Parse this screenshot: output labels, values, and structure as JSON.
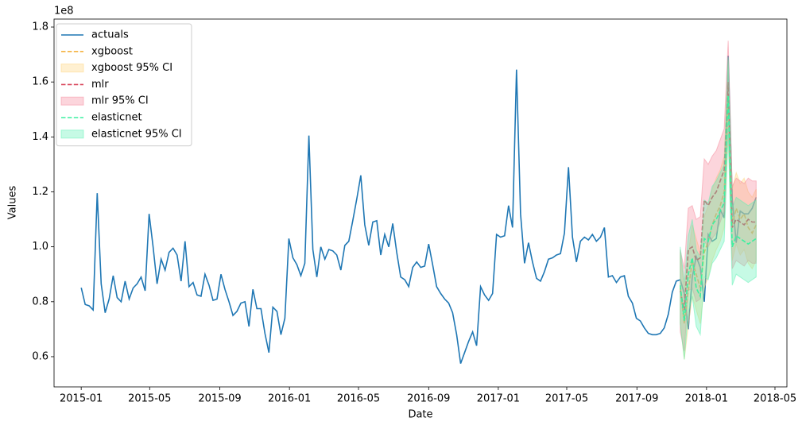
{
  "chart_data": {
    "type": "line",
    "xlabel": "Date",
    "ylabel": "Values",
    "y_offset_text": "1e8",
    "xlim": [
      -6.8,
      176.7
    ],
    "ylim": [
      0.49,
      1.829
    ],
    "xticks": [
      {
        "value": 0,
        "label": "2015-01"
      },
      {
        "value": 17.14,
        "label": "2015-05"
      },
      {
        "value": 34.71,
        "label": "2015-09"
      },
      {
        "value": 52.14,
        "label": "2016-01"
      },
      {
        "value": 69.43,
        "label": "2016-05"
      },
      {
        "value": 87,
        "label": "2016-09"
      },
      {
        "value": 104.43,
        "label": "2017-01"
      },
      {
        "value": 121.57,
        "label": "2017-05"
      },
      {
        "value": 139.14,
        "label": "2017-09"
      },
      {
        "value": 156.57,
        "label": "2018-01"
      },
      {
        "value": 173.71,
        "label": "2018-05"
      }
    ],
    "yticks": [
      0.6,
      0.8,
      {
        "value": 1,
        "label": "1.0"
      },
      1.2,
      1.4,
      1.6,
      1.8
    ],
    "legend": "upper left",
    "series": [
      {
        "name": "actuals",
        "color": "#1f77b4",
        "style": "solid",
        "x": [
          0,
          1,
          2,
          3,
          4,
          5,
          6,
          7,
          8,
          9,
          10,
          11,
          12,
          13,
          14,
          15,
          16,
          17,
          18,
          19,
          20,
          21,
          22,
          23,
          24,
          25,
          26,
          27,
          28,
          29,
          30,
          31,
          32,
          33,
          34,
          35,
          36,
          37,
          38,
          39,
          40,
          41,
          42,
          43,
          44,
          45,
          46,
          47,
          48,
          49,
          50,
          51,
          52,
          53,
          54,
          55,
          56,
          57,
          58,
          59,
          60,
          61,
          62,
          63,
          64,
          65,
          66,
          67,
          68,
          69,
          70,
          71,
          72,
          73,
          74,
          75,
          76,
          77,
          78,
          79,
          80,
          81,
          82,
          83,
          84,
          85,
          86,
          87,
          88,
          89,
          90,
          91,
          92,
          93,
          94,
          95,
          96,
          97,
          98,
          99,
          100,
          101,
          102,
          103,
          104,
          105,
          106,
          107,
          108,
          109,
          110,
          111,
          112,
          113,
          114,
          115,
          116,
          117,
          118,
          119,
          120,
          121,
          122,
          123,
          124,
          125,
          126,
          127,
          128,
          129,
          130,
          131,
          132,
          133,
          134,
          135,
          136,
          137,
          138,
          139,
          140,
          141,
          142,
          143,
          144,
          145,
          146,
          147,
          148,
          149,
          150,
          151,
          152,
          153,
          154,
          155,
          156,
          157,
          158,
          159,
          160,
          161,
          162,
          163,
          164,
          165,
          166,
          167,
          168,
          169
        ],
        "values": [
          0.851,
          0.79,
          0.785,
          0.77,
          1.195,
          0.865,
          0.76,
          0.81,
          0.895,
          0.815,
          0.8,
          0.875,
          0.81,
          0.85,
          0.865,
          0.89,
          0.84,
          1.12,
          1.0,
          0.865,
          0.955,
          0.915,
          0.98,
          0.995,
          0.97,
          0.875,
          1.02,
          0.855,
          0.87,
          0.825,
          0.82,
          0.9,
          0.86,
          0.805,
          0.81,
          0.9,
          0.845,
          0.8,
          0.75,
          0.765,
          0.795,
          0.8,
          0.71,
          0.845,
          0.775,
          0.775,
          0.685,
          0.615,
          0.78,
          0.765,
          0.68,
          0.74,
          1.03,
          0.96,
          0.935,
          0.895,
          0.94,
          1.405,
          0.99,
          0.89,
          1.0,
          0.955,
          0.99,
          0.985,
          0.97,
          0.915,
          1.005,
          1.02,
          1.095,
          1.175,
          1.26,
          1.08,
          1.005,
          1.09,
          1.095,
          0.97,
          1.045,
          1.0,
          1.085,
          0.98,
          0.89,
          0.88,
          0.855,
          0.925,
          0.945,
          0.925,
          0.93,
          1.01,
          0.935,
          0.855,
          0.83,
          0.81,
          0.795,
          0.76,
          0.68,
          0.575,
          0.615,
          0.655,
          0.69,
          0.64,
          0.855,
          0.825,
          0.805,
          0.83,
          1.045,
          1.035,
          1.04,
          1.15,
          1.07,
          1.645,
          1.12,
          0.94,
          1.015,
          0.945,
          0.885,
          0.875,
          0.91,
          0.955,
          0.96,
          0.97,
          0.975,
          1.05,
          1.29,
          1.035,
          0.945,
          1.02,
          1.035,
          1.025,
          1.045,
          1.02,
          1.035,
          1.07,
          0.89,
          0.895,
          0.87,
          0.89,
          0.895,
          0.82,
          0.795,
          0.74,
          0.73,
          0.705,
          0.685,
          0.68,
          0.68,
          0.685,
          0.705,
          0.755,
          0.835,
          0.875,
          0.88,
          0.83,
          0.7,
          0.89,
          0.965,
          0.925,
          0.8,
          1.045,
          1.02,
          1.03,
          1.135,
          1.105,
          1.695,
          1.175,
          1.015,
          1.13,
          1.12,
          1.12,
          1.14,
          1.18
        ]
      },
      {
        "name": "xgboost",
        "color": "#f5b342",
        "style": "dashed",
        "x": [
          150,
          151,
          152,
          153,
          154,
          155,
          156,
          157,
          158,
          159,
          160,
          161,
          162,
          163,
          164,
          165,
          166,
          167,
          168,
          169
        ],
        "values": [
          0.85,
          0.72,
          0.84,
          0.95,
          0.9,
          0.85,
          0.98,
          1.02,
          1.08,
          1.12,
          1.15,
          1.2,
          1.55,
          1.08,
          1.14,
          1.1,
          1.12,
          1.07,
          1.05,
          1.08
        ],
        "ci": {
          "name": "xgboost 95% CI",
          "color": "#ffd37a",
          "lower": [
            0.72,
            0.59,
            0.71,
            0.82,
            0.77,
            0.72,
            0.85,
            0.89,
            0.95,
            0.99,
            1.02,
            1.07,
            1.42,
            0.95,
            1.01,
            0.97,
            0.99,
            0.94,
            0.92,
            0.95
          ],
          "upper": [
            0.98,
            0.85,
            0.97,
            1.08,
            1.03,
            0.98,
            1.11,
            1.15,
            1.21,
            1.25,
            1.28,
            1.33,
            1.68,
            1.21,
            1.27,
            1.23,
            1.25,
            1.2,
            1.18,
            1.21
          ]
        }
      },
      {
        "name": "mlr",
        "color": "#d9475c",
        "style": "dashed",
        "x": [
          150,
          151,
          152,
          153,
          154,
          155,
          156,
          157,
          158,
          159,
          160,
          161,
          162,
          163,
          164,
          165,
          166,
          167,
          168,
          169
        ],
        "values": [
          0.84,
          0.77,
          0.99,
          1.0,
          0.95,
          0.96,
          1.17,
          1.15,
          1.18,
          1.2,
          1.24,
          1.28,
          1.6,
          1.07,
          1.1,
          1.09,
          1.08,
          1.1,
          1.09,
          1.09
        ],
        "ci": {
          "name": "mlr 95% CI",
          "color": "#f5879a",
          "lower": [
            0.69,
            0.62,
            0.84,
            0.85,
            0.8,
            0.81,
            1.02,
            1.0,
            1.03,
            1.05,
            1.09,
            1.13,
            1.45,
            0.92,
            0.95,
            0.94,
            0.93,
            0.95,
            0.94,
            0.94
          ],
          "upper": [
            0.99,
            0.92,
            1.14,
            1.15,
            1.1,
            1.11,
            1.32,
            1.3,
            1.33,
            1.35,
            1.39,
            1.43,
            1.75,
            1.22,
            1.25,
            1.24,
            1.23,
            1.25,
            1.24,
            1.24
          ]
        }
      },
      {
        "name": "elasticnet",
        "color": "#3cf0a0",
        "style": "dashed",
        "x": [
          150,
          151,
          152,
          153,
          154,
          155,
          156,
          157,
          158,
          159,
          160,
          161,
          162,
          163,
          164,
          165,
          166,
          167,
          168,
          169
        ],
        "values": [
          0.86,
          0.73,
          0.9,
          0.96,
          0.85,
          0.82,
          1.03,
          1.02,
          1.08,
          1.1,
          1.13,
          1.16,
          1.55,
          1.0,
          1.04,
          1.03,
          1.02,
          1.01,
          1.02,
          1.03
        ],
        "ci": {
          "name": "elasticnet 95% CI",
          "color": "#5cf2b4",
          "lower": [
            0.72,
            0.59,
            0.76,
            0.82,
            0.71,
            0.68,
            0.89,
            0.88,
            0.94,
            0.96,
            0.99,
            1.02,
            1.41,
            0.86,
            0.9,
            0.89,
            0.88,
            0.87,
            0.88,
            0.89
          ],
          "upper": [
            1.0,
            0.87,
            1.04,
            1.1,
            0.99,
            0.96,
            1.17,
            1.16,
            1.22,
            1.24,
            1.27,
            1.3,
            1.69,
            1.14,
            1.18,
            1.17,
            1.16,
            1.15,
            1.16,
            1.17
          ]
        }
      }
    ]
  }
}
